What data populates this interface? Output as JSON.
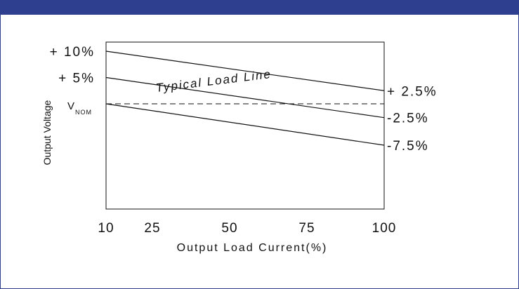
{
  "colors": {
    "header": "#2e3f8f",
    "line": "#111111",
    "background": "#ffffff"
  },
  "chart_data": {
    "type": "line",
    "title": "",
    "xlabel": "Output Load Current(%)",
    "ylabel": "Output Voltage",
    "xlim": [
      10,
      100
    ],
    "ylim": [
      -30,
      10
    ],
    "x_ticks": [
      10,
      25,
      50,
      75,
      100
    ],
    "x_tick_labels": [
      "10",
      "25",
      "50",
      "75",
      "100"
    ],
    "y_tick_labels_left": [
      {
        "label": "+ 10%",
        "value": 10
      },
      {
        "label": "+ 5%",
        "value": 5
      }
    ],
    "vnom": {
      "main": "V",
      "sub": "NOM",
      "value": 0
    },
    "right_labels": [
      {
        "label": "+ 2.5%",
        "value": 2.5
      },
      {
        "label": "-2.5%",
        "value": -2.5
      },
      {
        "label": "-7.5%",
        "value": -7.5
      }
    ],
    "series": [
      {
        "x": [
          10,
          100
        ],
        "values": [
          10,
          2.5
        ]
      },
      {
        "x": [
          10,
          100
        ],
        "values": [
          5,
          -2.5
        ]
      },
      {
        "x": [
          10,
          100
        ],
        "values": [
          0,
          -7.5
        ]
      }
    ],
    "reference_line": {
      "y": 0,
      "style": "dashed"
    },
    "annotations": [
      {
        "text": "Typical Load Line",
        "x": 45,
        "y": 3.6,
        "angle": -7
      }
    ],
    "grid": false
  }
}
